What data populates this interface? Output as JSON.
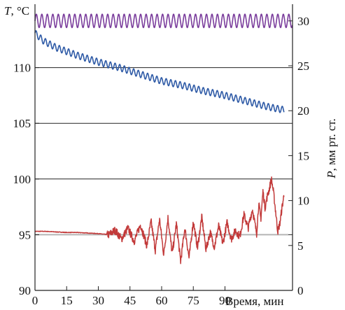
{
  "chart_data": {
    "type": "line",
    "left_axis": {
      "title_var": "T",
      "title_unit": ", °C",
      "ylim": [
        90,
        115
      ],
      "ticks": [
        90,
        95,
        100,
        105,
        110
      ]
    },
    "right_axis": {
      "title_var": "P",
      "title_unit": ", мм рт. ст.",
      "ylim": [
        0,
        31
      ],
      "ticks": [
        0,
        5,
        10,
        15,
        20,
        25,
        30
      ]
    },
    "x_axis": {
      "label": "Время, мин",
      "xlim": [
        0,
        122
      ],
      "ticks": [
        0,
        15,
        30,
        45,
        60,
        75,
        90
      ]
    },
    "grid": {
      "horizontal_at_left_values": [
        95,
        100,
        105,
        110
      ]
    },
    "colors": {
      "top_series": "#7a3d9c",
      "middle_series": "#2e5aa6",
      "bottom_series": "#c23a3a",
      "baseline": "#b5b5b5",
      "grid": "#222222"
    },
    "series": [
      {
        "axis": "right",
        "note_visual": "oscillating band",
        "x": [
          0,
          122
        ],
        "y": [
          30,
          30
        ],
        "oscillation_amplitude": 0.75,
        "oscillation_period_min": 2.6
      },
      {
        "axis": "left",
        "x": [
          0,
          4,
          10,
          20,
          30,
          40,
          50,
          60,
          70,
          80,
          90,
          100,
          110,
          115,
          118
        ],
        "y": [
          113.1,
          112.4,
          111.8,
          111.1,
          110.5,
          110.0,
          109.4,
          108.8,
          108.4,
          107.9,
          107.5,
          107.0,
          106.5,
          106.3,
          106.2
        ],
        "oscillation_amplitude": 0.3,
        "oscillation_period_min": 2.2
      },
      {
        "axis": "left",
        "x": [
          0,
          5,
          10,
          15,
          20,
          25,
          30,
          35,
          38,
          41,
          44,
          47,
          50,
          53,
          55,
          57,
          59,
          61,
          63,
          65,
          67,
          69,
          71,
          73,
          75,
          77,
          79,
          81,
          83,
          85,
          87,
          89,
          91,
          93,
          95,
          97,
          99,
          101,
          103,
          105,
          106,
          107,
          108,
          109,
          110,
          111,
          112,
          113,
          114,
          115,
          116,
          117,
          118
        ],
        "y": [
          95.3,
          95.3,
          95.25,
          95.2,
          95.2,
          95.15,
          95.1,
          95.0,
          95.4,
          94.6,
          95.6,
          94.4,
          95.9,
          94.0,
          96.2,
          93.6,
          96.4,
          93.2,
          96.5,
          93.3,
          96.0,
          92.6,
          95.6,
          92.9,
          96.2,
          93.8,
          96.6,
          93.7,
          95.2,
          93.9,
          95.8,
          94.2,
          96.1,
          94.6,
          95.4,
          94.8,
          96.8,
          95.6,
          97.3,
          95.1,
          97.8,
          96.4,
          98.9,
          97.4,
          98.4,
          99.1,
          100.0,
          98.8,
          97.1,
          95.3,
          96.0,
          97.4,
          98.6
        ],
        "noise_amplitude": 0.35
      },
      {
        "axis": "left",
        "note_visual": "flat baseline",
        "x": [
          0,
          120
        ],
        "y": [
          95.0,
          95.0
        ]
      }
    ]
  }
}
